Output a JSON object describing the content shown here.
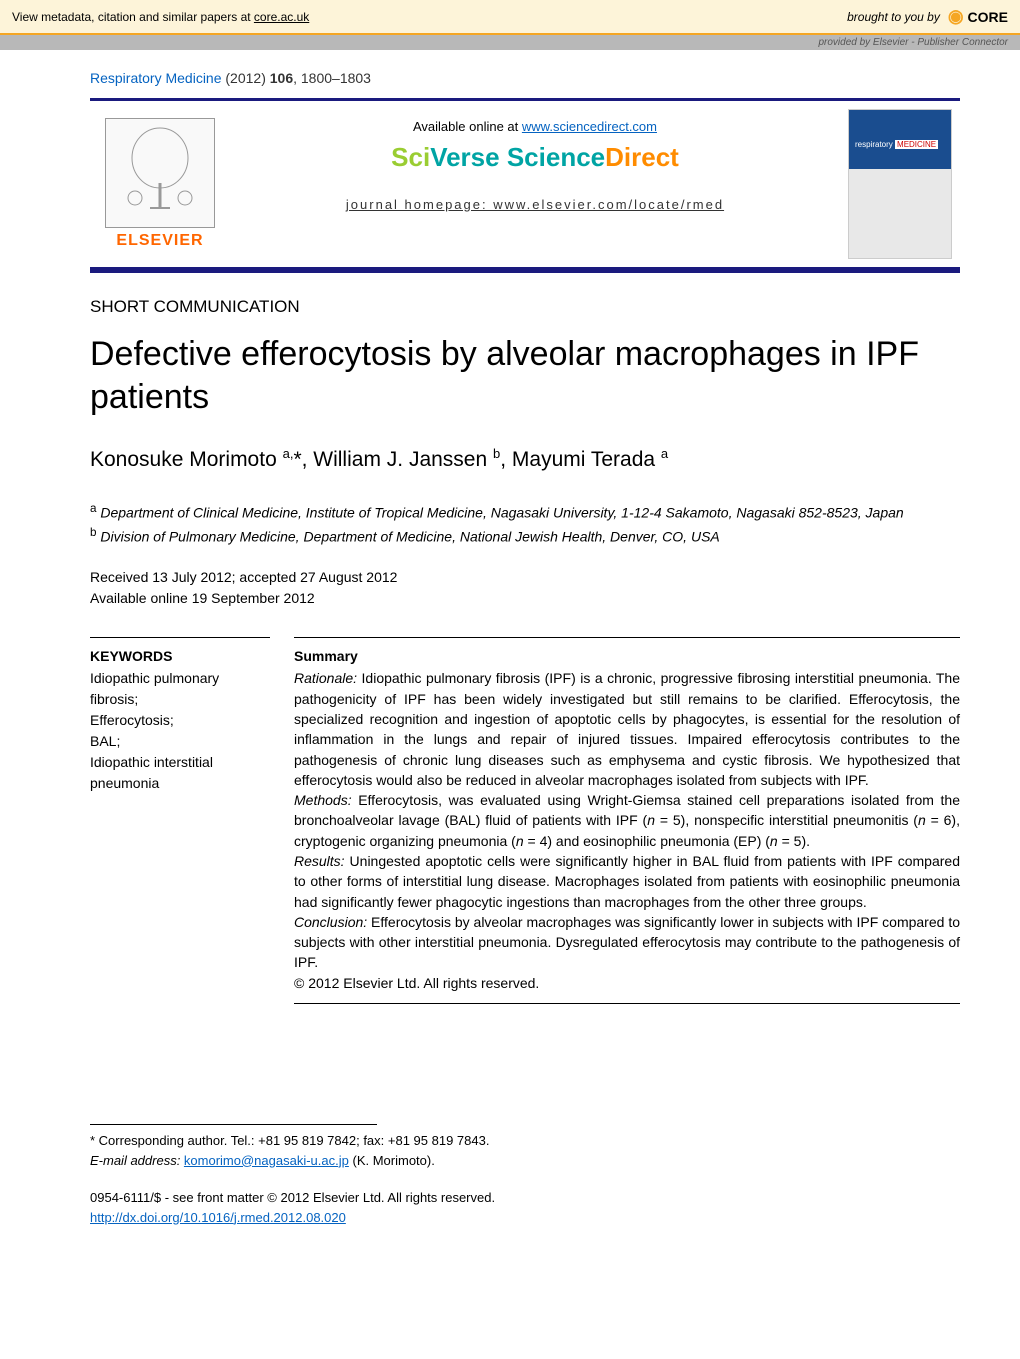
{
  "coreBanner": {
    "leftText": "View metadata, citation and similar papers at ",
    "leftLink": "core.ac.uk",
    "broughtBy": "brought to you by",
    "logo": "CORE",
    "providedBy": "provided by Elsevier - Publisher Connector"
  },
  "citation": {
    "journal": "Respiratory Medicine",
    "year": "(2012)",
    "volume": "106",
    "pages": ", 1800–1803"
  },
  "headerBox": {
    "elsevierText": "ELSEVIER",
    "availablePrefix": "Available online at ",
    "availableLink": "www.sciencedirect.com",
    "sciverse": {
      "sci": "Sci",
      "verse": "Verse ",
      "science": "Science",
      "direct": "Direct"
    },
    "homepageLabel": "journal homepage: www.elsevier.com/locate/rmed",
    "coverLabel": "respiratory",
    "coverMedicine": "MEDICINE"
  },
  "sectionLabel": "SHORT COMMUNICATION",
  "title": "Defective efferocytosis by alveolar macrophages in IPF patients",
  "authorsHtml": "Konosuke Morimoto <sup>a,</sup>*, William J. Janssen <sup>b</sup>, Mayumi Terada <sup>a</sup>",
  "affiliations": {
    "a": "Department of Clinical Medicine, Institute of Tropical Medicine, Nagasaki University, 1-12-4 Sakamoto, Nagasaki 852-8523, Japan",
    "b": "Division of Pulmonary Medicine, Department of Medicine, National Jewish Health, Denver, CO, USA"
  },
  "dates": {
    "received": "Received 13 July 2012; accepted 27 August 2012",
    "online": "Available online 19 September 2012"
  },
  "keywords": {
    "title": "KEYWORDS",
    "items": "Idiopathic pulmonary fibrosis;\nEfferocytosis;\nBAL;\nIdiopathic interstitial pneumonia"
  },
  "summary": {
    "title": "Summary",
    "rationale": "Rationale: Idiopathic pulmonary fibrosis (IPF) is a chronic, progressive fibrosing interstitial pneumonia. The pathogenicity of IPF has been widely investigated but still remains to be clarified. Efferocytosis, the specialized recognition and ingestion of apoptotic cells by phagocytes, is essential for the resolution of inflammation in the lungs and repair of injured tissues. Impaired efferocytosis contributes to the pathogenesis of chronic lung diseases such as emphysema and cystic fibrosis. We hypothesized that efferocytosis would also be reduced in alveolar macrophages isolated from subjects with IPF.",
    "methods": "Methods: Efferocytosis, was evaluated using Wright-Giemsa stained cell preparations isolated from the bronchoalveolar lavage (BAL) fluid of patients with IPF (n = 5), nonspecific interstitial pneumonitis (n = 6), cryptogenic organizing pneumonia (n = 4) and eosinophilic pneumonia (EP) (n = 5).",
    "results": "Results: Uningested apoptotic cells were significantly higher in BAL fluid from patients with IPF compared to other forms of interstitial lung disease. Macrophages isolated from patients with eosinophilic pneumonia had significantly fewer phagocytic ingestions than macrophages from the other three groups.",
    "conclusion": "Conclusion: Efferocytosis by alveolar macrophages was significantly lower in subjects with IPF compared to subjects with other interstitial pneumonia. Dysregulated efferocytosis may contribute to the pathogenesis of IPF.",
    "copyright": "© 2012 Elsevier Ltd. All rights reserved."
  },
  "corresponding": {
    "label": "* Corresponding author. Tel.: +81 95 819 7842; fax: +81 95 819 7843.",
    "emailLabel": "E-mail address: ",
    "email": "komorimo@nagasaki-u.ac.jp",
    "emailSuffix": " (K. Morimoto)."
  },
  "footer": {
    "issn": "0954-6111/$ - see front matter © 2012 Elsevier Ltd. All rights reserved.",
    "doi": "http://dx.doi.org/10.1016/j.rmed.2012.08.020"
  }
}
